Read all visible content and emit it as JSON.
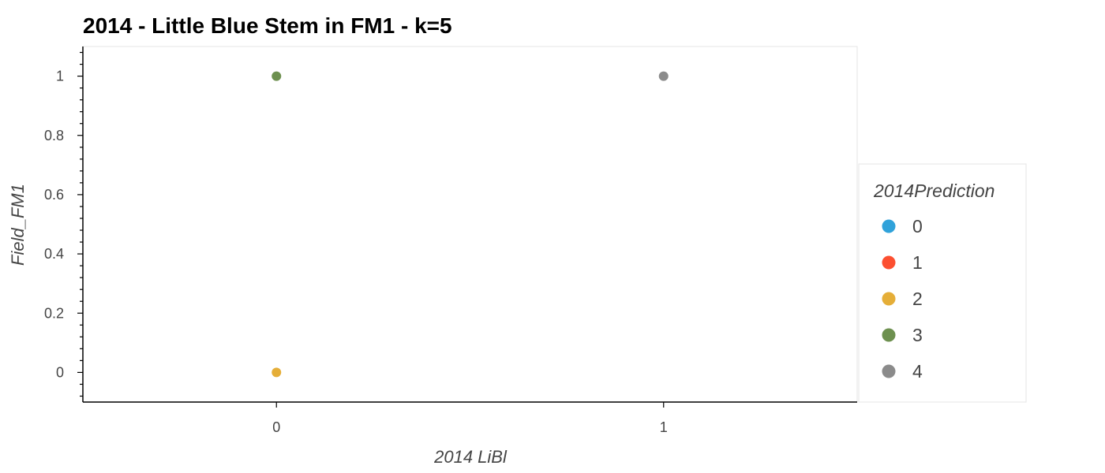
{
  "chart_data": {
    "type": "scatter",
    "title": "2014 - Little Blue Stem in FM1 - k=5",
    "xlabel": "2014 LiBl",
    "ylabel": "Field_FM1",
    "xlim": [
      -0.5,
      1.5
    ],
    "ylim": [
      -0.1,
      1.1
    ],
    "x_ticks": [
      "0",
      "1"
    ],
    "y_ticks": [
      "0",
      "0.2",
      "0.4",
      "0.6",
      "0.8",
      "1"
    ],
    "grid": false,
    "legend": {
      "title": "2014Prediction",
      "placement": "right",
      "entries": [
        {
          "label": "0",
          "color": "#30a2da"
        },
        {
          "label": "1",
          "color": "#fc4f30"
        },
        {
          "label": "2",
          "color": "#e5ae38"
        },
        {
          "label": "3",
          "color": "#6d904f"
        },
        {
          "label": "4",
          "color": "#8b8b8b"
        }
      ]
    },
    "points": [
      {
        "x": 0,
        "y": 1,
        "class": "3",
        "color": "#6d904f"
      },
      {
        "x": 0,
        "y": 0,
        "class": "2",
        "color": "#e5ae38"
      },
      {
        "x": 1,
        "y": 1,
        "class": "4",
        "color": "#8b8b8b"
      }
    ]
  }
}
